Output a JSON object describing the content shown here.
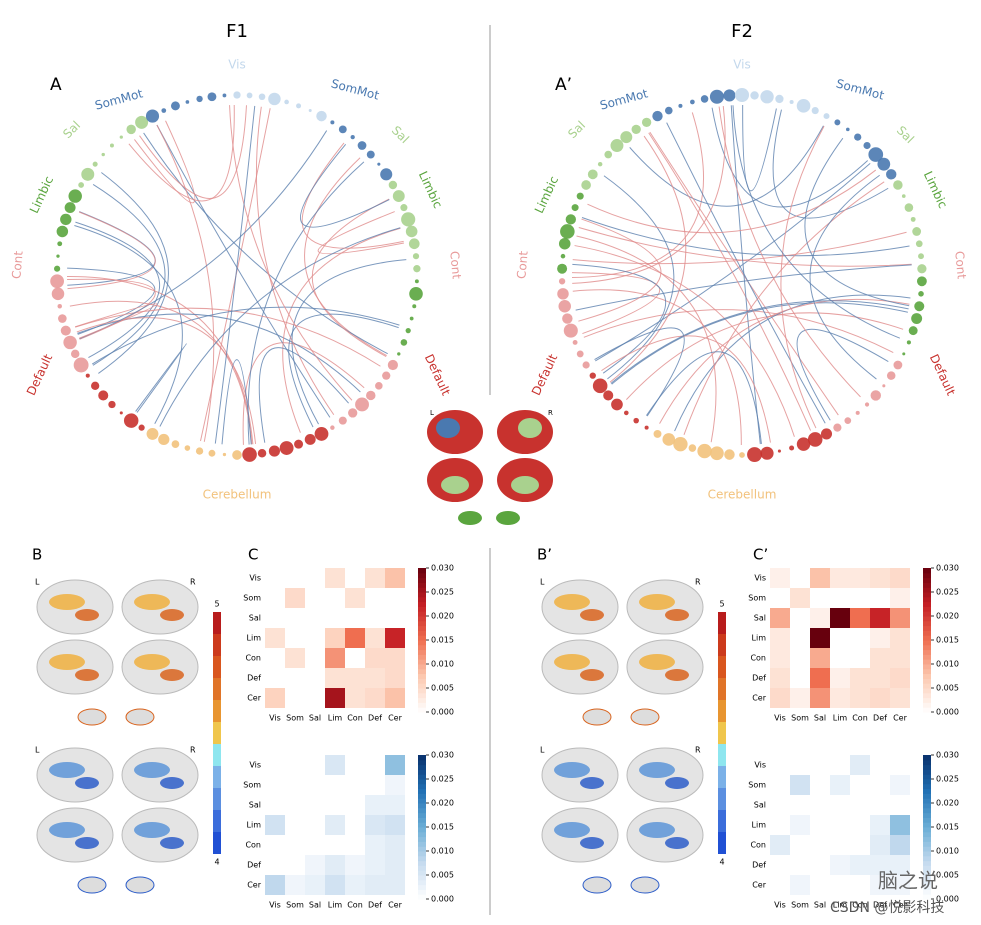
{
  "figures": [
    {
      "title": "F1",
      "circle": {
        "label": "A",
        "networks": [
          {
            "name": "Vis",
            "color": "#c3d8ec"
          },
          {
            "name": "SomMot",
            "color": "#4a79b0"
          },
          {
            "name": "SomMot",
            "color": "#4a79b0"
          },
          {
            "name": "Sal",
            "color": "#a9d18e"
          },
          {
            "name": "Sal",
            "color": "#a9d18e"
          },
          {
            "name": "Limbic",
            "color": "#5aa53e"
          },
          {
            "name": "Limbic",
            "color": "#5aa53e"
          },
          {
            "name": "Cont",
            "color": "#e89a9a"
          },
          {
            "name": "Cont",
            "color": "#e89a9a"
          },
          {
            "name": "Default",
            "color": "#c8322e"
          },
          {
            "name": "Default",
            "color": "#c8322e"
          },
          {
            "name": "Cerebellum",
            "color": "#f2c27c"
          }
        ]
      },
      "brain": {
        "label": "B",
        "hemisphere_labels": [
          "L",
          "R",
          "L",
          "R"
        ],
        "colorbar_labels": [
          "5",
          "4"
        ]
      },
      "matrix": {
        "label": "C",
        "positive": {
          "rows": [
            "Vis",
            "Som",
            "Sal",
            "Lim",
            "Con",
            "Def",
            "Cer"
          ],
          "cols": [
            "Vis",
            "Som",
            "Sal",
            "Lim",
            "Con",
            "Def",
            "Cer"
          ],
          "values": [
            [
              0,
              0,
              0,
              0.004,
              0,
              0.004,
              0.008
            ],
            [
              0,
              0.005,
              0,
              0,
              0.004,
              0,
              0
            ],
            [
              0,
              0,
              0,
              0,
              0,
              0,
              0
            ],
            [
              0.004,
              0,
              0,
              0.006,
              0.015,
              0.004,
              0.022
            ],
            [
              0,
              0.004,
              0,
              0.012,
              0,
              0.005,
              0.005
            ],
            [
              0,
              0,
              0,
              0.004,
              0.004,
              0.004,
              0.005
            ],
            [
              0.006,
              0,
              0,
              0.025,
              0.004,
              0.005,
              0.008
            ]
          ],
          "colorbar_ticks": [
            {
              "value": 0,
              "label": "0.000"
            },
            {
              "value": 0.005,
              "label": "0.005"
            },
            {
              "value": 0.01,
              "label": "0.010"
            },
            {
              "value": 0.015,
              "label": "0.015"
            },
            {
              "value": 0.02,
              "label": "0.020"
            },
            {
              "value": 0.025,
              "label": "0.025"
            },
            {
              "value": 0.03,
              "label": "0.030"
            }
          ]
        },
        "negative": {
          "rows": [
            "Vis",
            "Som",
            "Sal",
            "Lim",
            "Con",
            "Def",
            "Cer"
          ],
          "cols": [
            "Vis",
            "Som",
            "Sal",
            "Lim",
            "Con",
            "Def",
            "Cer"
          ],
          "values": [
            [
              0,
              0,
              0,
              0.005,
              0,
              0,
              0.012
            ],
            [
              0,
              0,
              0,
              0,
              0,
              0,
              0.002
            ],
            [
              0,
              0,
              0,
              0,
              0,
              0.003,
              0.003
            ],
            [
              0.006,
              0,
              0,
              0.004,
              0,
              0.005,
              0.006
            ],
            [
              0,
              0,
              0,
              0,
              0,
              0.003,
              0.004
            ],
            [
              0,
              0,
              0.002,
              0.004,
              0.002,
              0.003,
              0.004
            ],
            [
              0.008,
              0.002,
              0.003,
              0.006,
              0.003,
              0.004,
              0.004
            ]
          ],
          "colorbar_ticks": [
            {
              "value": 0,
              "label": "0.000"
            },
            {
              "value": 0.005,
              "label": "0.005"
            },
            {
              "value": 0.01,
              "label": "0.010"
            },
            {
              "value": 0.015,
              "label": "0.015"
            },
            {
              "value": 0.02,
              "label": "0.020"
            },
            {
              "value": 0.025,
              "label": "0.025"
            },
            {
              "value": 0.03,
              "label": "0.030"
            }
          ]
        }
      }
    },
    {
      "title": "F2",
      "circle": {
        "label": "A’",
        "networks": [
          {
            "name": "Vis",
            "color": "#c3d8ec"
          },
          {
            "name": "SomMot",
            "color": "#4a79b0"
          },
          {
            "name": "SomMot",
            "color": "#4a79b0"
          },
          {
            "name": "Sal",
            "color": "#a9d18e"
          },
          {
            "name": "Sal",
            "color": "#a9d18e"
          },
          {
            "name": "Limbic",
            "color": "#5aa53e"
          },
          {
            "name": "Limbic",
            "color": "#5aa53e"
          },
          {
            "name": "Cont",
            "color": "#e89a9a"
          },
          {
            "name": "Cont",
            "color": "#e89a9a"
          },
          {
            "name": "Default",
            "color": "#c8322e"
          },
          {
            "name": "Default",
            "color": "#c8322e"
          },
          {
            "name": "Cerebellum",
            "color": "#f2c27c"
          }
        ]
      },
      "brain": {
        "label": "B’",
        "hemisphere_labels": [
          "L",
          "R",
          "L",
          "R"
        ],
        "colorbar_labels": [
          "5",
          "4"
        ]
      },
      "matrix": {
        "label": "C’",
        "positive": {
          "rows": [
            "Vis",
            "Som",
            "Sal",
            "Lim",
            "Con",
            "Def",
            "Cer"
          ],
          "cols": [
            "Vis",
            "Som",
            "Sal",
            "Lim",
            "Con",
            "Def",
            "Cer"
          ],
          "values": [
            [
              0.002,
              0,
              0.008,
              0.003,
              0.003,
              0.004,
              0.005
            ],
            [
              0,
              0.004,
              0,
              0,
              0,
              0,
              0.002
            ],
            [
              0.01,
              0,
              0.002,
              0.03,
              0.015,
              0.022,
              0.012
            ],
            [
              0.003,
              0,
              0.03,
              0,
              0,
              0.002,
              0.004
            ],
            [
              0.003,
              0,
              0.01,
              0,
              0,
              0.004,
              0.004
            ],
            [
              0.004,
              0,
              0.015,
              0.002,
              0.004,
              0.004,
              0.005
            ],
            [
              0.005,
              0.002,
              0.012,
              0.003,
              0.004,
              0.005,
              0.004
            ]
          ],
          "colorbar_ticks": [
            {
              "value": 0,
              "label": "0.000"
            },
            {
              "value": 0.005,
              "label": "0.005"
            },
            {
              "value": 0.01,
              "label": "0.010"
            },
            {
              "value": 0.015,
              "label": "0.015"
            },
            {
              "value": 0.02,
              "label": "0.020"
            },
            {
              "value": 0.025,
              "label": "0.025"
            },
            {
              "value": 0.03,
              "label": "0.030"
            }
          ]
        },
        "negative": {
          "rows": [
            "Vis",
            "Som",
            "Sal",
            "Lim",
            "Con",
            "Def",
            "Cer"
          ],
          "cols": [
            "Vis",
            "Som",
            "Sal",
            "Lim",
            "Con",
            "Def",
            "Cer"
          ],
          "values": [
            [
              0,
              0,
              0,
              0,
              0.004,
              0,
              0
            ],
            [
              0,
              0.006,
              0,
              0.003,
              0,
              0,
              0.002
            ],
            [
              0,
              0,
              0,
              0,
              0,
              0,
              0
            ],
            [
              0,
              0.002,
              0,
              0,
              0,
              0.003,
              0.012
            ],
            [
              0.004,
              0,
              0,
              0,
              0,
              0.004,
              0.008
            ],
            [
              0,
              0,
              0,
              0.002,
              0.003,
              0.003,
              0.003
            ],
            [
              0,
              0.002,
              0,
              0,
              0,
              0.002,
              0.002
            ]
          ],
          "colorbar_ticks": [
            {
              "value": 0,
              "label": "0.000"
            },
            {
              "value": 0.005,
              "label": "0.005"
            },
            {
              "value": 0.01,
              "label": "0.010"
            },
            {
              "value": 0.015,
              "label": "0.015"
            },
            {
              "value": 0.02,
              "label": "0.020"
            },
            {
              "value": 0.025,
              "label": "0.025"
            },
            {
              "value": 0.03,
              "label": "0.030"
            }
          ]
        }
      }
    }
  ],
  "watermark": [
    "脑之说",
    "CSDN @悦影科技"
  ]
}
